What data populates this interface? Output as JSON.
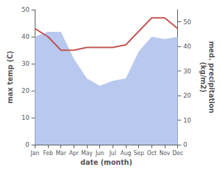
{
  "chart_data": {
    "type": "line",
    "xlabel": "date (month)",
    "ylabel": "max temp (C)",
    "y2label": "med. precipitation\n(kg/m2)",
    "categories": [
      "Jan",
      "Feb",
      "Mar",
      "Apr",
      "May",
      "Jun",
      "Jul",
      "Aug",
      "Sep",
      "Oct",
      "Nov",
      "Dec"
    ],
    "series": [
      {
        "type": "area",
        "axis": "y2",
        "color": "#b8c8ee",
        "values": [
          44,
          46,
          46,
          35,
          27,
          24,
          26,
          27,
          38,
          44,
          43,
          44
        ]
      },
      {
        "type": "line",
        "color": "#c0504d",
        "values": [
          43,
          40,
          35,
          35,
          36,
          36,
          36,
          37,
          42,
          47,
          47,
          43
        ]
      }
    ],
    "ylim": [
      0,
      50
    ],
    "yticks": [
      0,
      10,
      20,
      30,
      40,
      50
    ],
    "y2lim": [
      0,
      55
    ],
    "y2ticks": [
      0,
      10,
      20,
      30,
      40,
      50
    ],
    "grid": false
  }
}
